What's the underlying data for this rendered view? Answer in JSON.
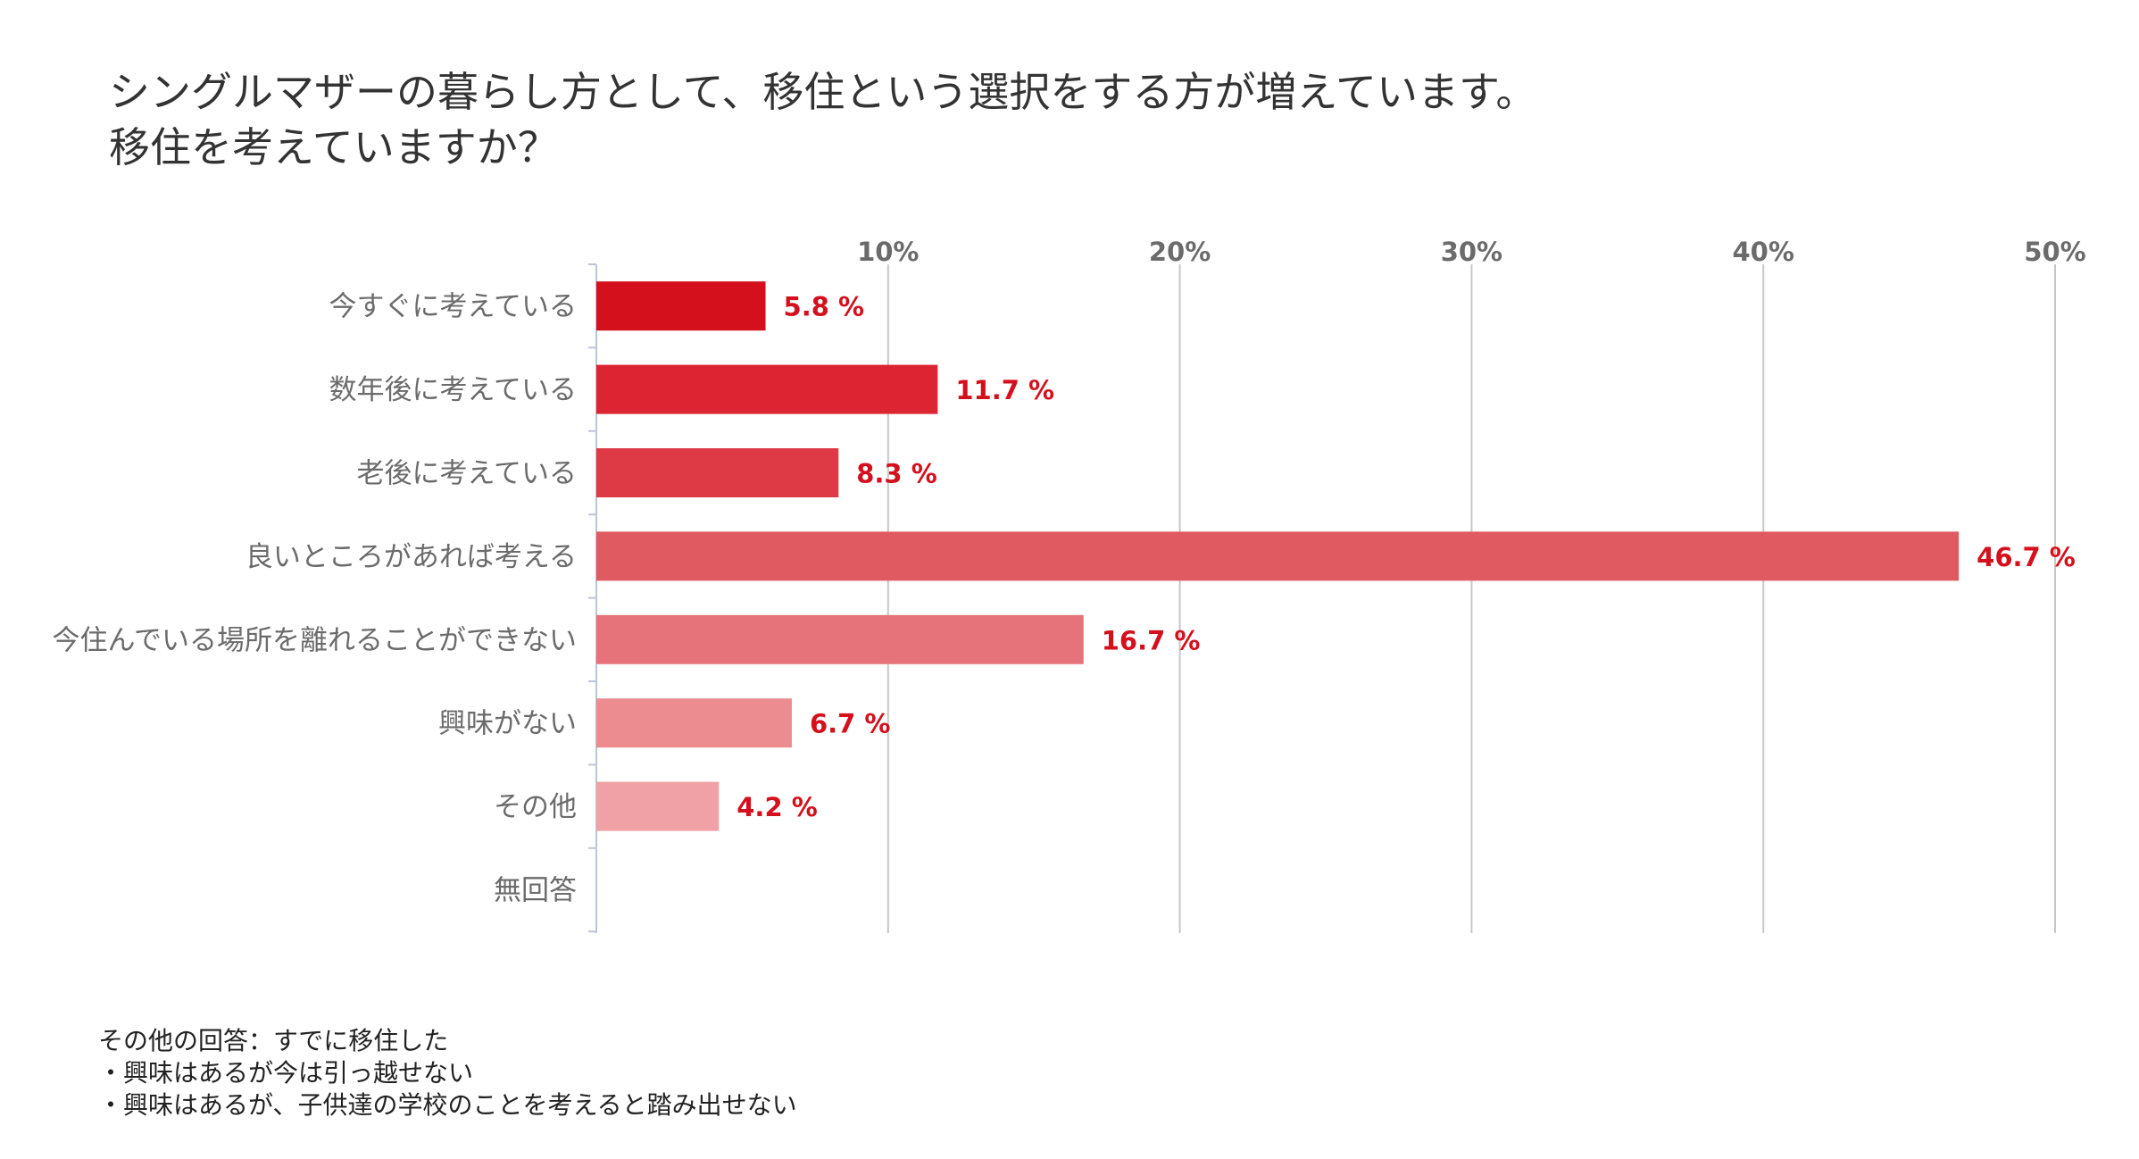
{
  "title_lines": [
    "シングルマザーの暮らし方として、移住という選択をする方が増えています。",
    "移住を考えていますか？"
  ],
  "chart_data": {
    "type": "bar",
    "orientation": "horizontal",
    "title": "シングルマザーの暮らし方として、移住という選択をする方が増えています。移住を考えていますか？",
    "categories": [
      "今すぐに考えている",
      "数年後に考えている",
      "老後に考えている",
      "良いところがあれば考える",
      "今住んでいる場所を離れることができない",
      "興味がない",
      "その他",
      "無回答"
    ],
    "values": [
      5.8,
      11.7,
      8.3,
      46.7,
      16.7,
      6.7,
      4.2,
      null
    ],
    "value_labels": [
      "5.8 %",
      "11.7 %",
      "8.3 %",
      "46.7 %",
      "16.7 %",
      "6.7 %",
      "4.2 %",
      ""
    ],
    "bar_colors": [
      "#d4101d",
      "#dc2432",
      "#de3a45",
      "#e05a62",
      "#e7737a",
      "#ec8b90",
      "#f0a1a5",
      "#f0a1a5"
    ],
    "label_color": "#d4101d",
    "xticks": [
      10,
      20,
      30,
      40,
      50
    ],
    "xtick_labels": [
      "10%",
      "20%",
      "30%",
      "40%",
      "50%"
    ],
    "xlim": [
      0,
      50
    ],
    "xlabel": "",
    "ylabel": "",
    "grid": true
  },
  "notes": [
    "その他の回答：すでに移住した",
    "・興味はあるが今は引っ越せない",
    "・興味はあるが、子供達の学校のことを考えると踏み出せない"
  ]
}
